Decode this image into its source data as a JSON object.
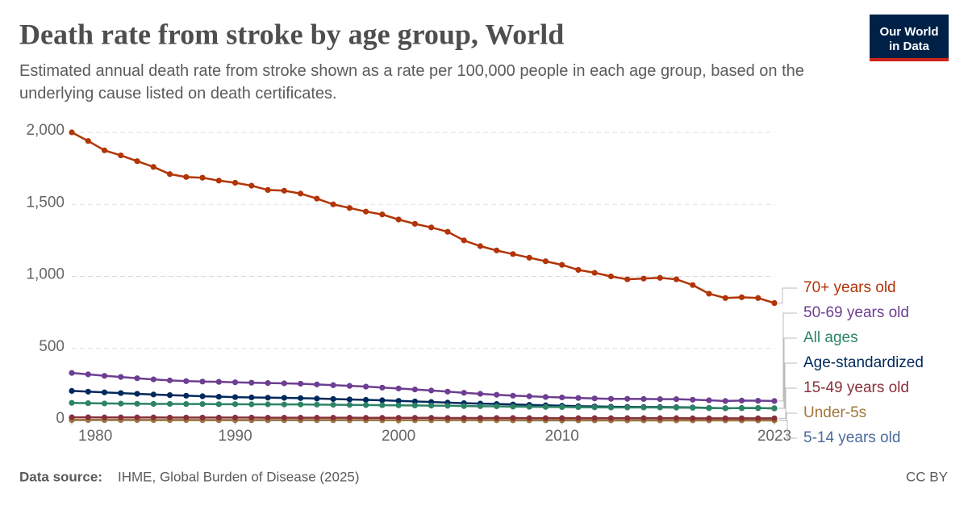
{
  "chart_data": {
    "type": "line",
    "title": "Death rate from stroke by age group, World",
    "subtitle": "Estimated annual death rate from stroke shown as a rate per 100,000 people in each age group, based on the underlying cause listed on death certificates.",
    "logo": [
      "Our World",
      "in Data"
    ],
    "source_label": "Data source:",
    "source": "IHME, Global Burden of Disease (2025)",
    "license": "CC BY",
    "x": [
      1980,
      1981,
      1982,
      1983,
      1984,
      1985,
      1986,
      1987,
      1988,
      1989,
      1990,
      1991,
      1992,
      1993,
      1994,
      1995,
      1996,
      1997,
      1998,
      1999,
      2000,
      2001,
      2002,
      2003,
      2004,
      2005,
      2006,
      2007,
      2008,
      2009,
      2010,
      2011,
      2012,
      2013,
      2014,
      2015,
      2016,
      2017,
      2018,
      2019,
      2020,
      2021,
      2022,
      2023
    ],
    "xlim": [
      1980,
      2023
    ],
    "xticks": [
      1980,
      1990,
      2000,
      2010,
      2023
    ],
    "ylim": [
      0,
      2000
    ],
    "yticks": [
      0,
      500,
      {
        "value": 1000,
        "label": "1,000"
      },
      {
        "value": 1500,
        "label": "1,500"
      },
      {
        "value": 2000,
        "label": "2,000"
      }
    ],
    "grid": true,
    "series": [
      {
        "name": "70+ years old",
        "color": "#b13507",
        "values": [
          2000,
          1940,
          1875,
          1840,
          1800,
          1760,
          1710,
          1690,
          1685,
          1665,
          1650,
          1630,
          1600,
          1595,
          1575,
          1540,
          1500,
          1475,
          1450,
          1430,
          1395,
          1365,
          1340,
          1310,
          1250,
          1210,
          1180,
          1155,
          1130,
          1105,
          1080,
          1045,
          1025,
          1000,
          980,
          985,
          990,
          980,
          940,
          880,
          850,
          855,
          850,
          815
        ]
      },
      {
        "name": "50-69 years old",
        "color": "#6d3e91",
        "values": [
          330,
          320,
          310,
          302,
          293,
          285,
          278,
          273,
          270,
          268,
          265,
          262,
          260,
          258,
          255,
          250,
          245,
          240,
          235,
          228,
          222,
          215,
          208,
          200,
          192,
          185,
          178,
          172,
          168,
          163,
          160,
          156,
          153,
          150,
          150,
          149,
          148,
          148,
          144,
          140,
          135,
          138,
          137,
          135
        ]
      },
      {
        "name": "All ages",
        "color": "#2c8465",
        "values": [
          122,
          120,
          118,
          117,
          116,
          115,
          115,
          114,
          114,
          113,
          113,
          112,
          112,
          111,
          111,
          110,
          109,
          108,
          107,
          106,
          105,
          104,
          103,
          102,
          100,
          99,
          98,
          96,
          95,
          94,
          93,
          92,
          91,
          90,
          90,
          90,
          90,
          89,
          88,
          86,
          85,
          86,
          86,
          85
        ]
      },
      {
        "name": "Age-standardized",
        "color": "#00295b",
        "values": [
          205,
          200,
          195,
          190,
          185,
          180,
          176,
          172,
          168,
          165,
          162,
          160,
          158,
          157,
          155,
          152,
          149,
          146,
          143,
          140,
          136,
          132,
          128,
          124,
          120,
          117,
          114,
          111,
          108,
          105,
          102,
          99,
          97,
          95,
          94,
          93,
          93,
          92,
          90,
          87,
          85,
          86,
          86,
          84
        ]
      },
      {
        "name": "15-49 years old",
        "color": "#883039",
        "values": [
          22,
          22,
          21,
          21,
          21,
          21,
          20,
          20,
          20,
          20,
          20,
          20,
          19,
          19,
          19,
          19,
          19,
          19,
          18,
          18,
          18,
          18,
          18,
          17,
          17,
          17,
          17,
          17,
          16,
          16,
          16,
          16,
          16,
          16,
          16,
          16,
          16,
          16,
          15,
          15,
          15,
          15,
          15,
          15
        ]
      },
      {
        "name": "Under-5s",
        "color": "#a2763b",
        "values": [
          4,
          4,
          4,
          4,
          4,
          3,
          3,
          3,
          3,
          3,
          3,
          3,
          3,
          3,
          3,
          3,
          3,
          3,
          3,
          2,
          2,
          2,
          2,
          2,
          2,
          2,
          2,
          2,
          2,
          2,
          2,
          2,
          1,
          1,
          1,
          1,
          1,
          1,
          1,
          1,
          1,
          1,
          1,
          1
        ]
      },
      {
        "name": "5-14 years old",
        "color": "#4c6a9c",
        "values": [
          3,
          3,
          3,
          3,
          3,
          3,
          3,
          3,
          2,
          2,
          2,
          2,
          2,
          2,
          2,
          2,
          2,
          2,
          2,
          2,
          2,
          2,
          2,
          2,
          2,
          2,
          2,
          1,
          1,
          1,
          1,
          1,
          1,
          1,
          1,
          1,
          1,
          1,
          1,
          1,
          1,
          1,
          1,
          1
        ]
      }
    ]
  }
}
